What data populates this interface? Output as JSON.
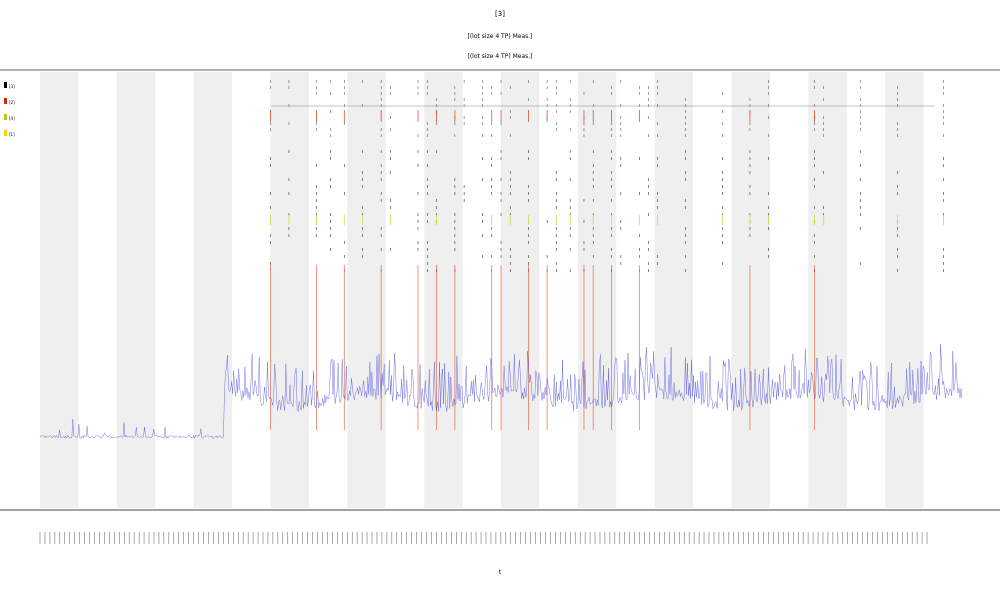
{
  "title_lines": [
    "[3]",
    "[(lot size 4 TP) Meas.]",
    "[(lot size 4 TP) Meas.]"
  ],
  "legend": {
    "entries": [
      {
        "label": "[3]",
        "color": "#000000"
      },
      {
        "label": "[2]",
        "color": "#d62a00"
      },
      {
        "label": "[4]",
        "color": "#c8c800"
      },
      {
        "label": "[1]",
        "color": "#ffd000"
      }
    ]
  },
  "x_axis_label": "t",
  "colors": {
    "band": "#efefef",
    "blue_trace": "#3b3bd8",
    "red_marker": "#e03a10",
    "yellow_marker": "#d8d830",
    "black_marker": "#111111",
    "axis": "#555555"
  },
  "chart_data": {
    "type": "line",
    "title": "",
    "xlabel": "t",
    "ylabel": "",
    "grid": false,
    "legend_position": "top-left",
    "n_bands": 24,
    "n_x_ticks": 180,
    "baseline_segment": {
      "start_fraction": 0.0,
      "end_fraction": 0.2,
      "level": 0.06
    },
    "active_segment": {
      "start_fraction": 0.2,
      "end_fraction": 1.0,
      "level": 0.16,
      "spread": 0.14
    },
    "event_markers": {
      "fractions": [
        0.25,
        0.27,
        0.3,
        0.315,
        0.33,
        0.35,
        0.37,
        0.38,
        0.41,
        0.42,
        0.43,
        0.45,
        0.46,
        0.48,
        0.49,
        0.5,
        0.51,
        0.53,
        0.55,
        0.56,
        0.575,
        0.59,
        0.6,
        0.62,
        0.63,
        0.65,
        0.66,
        0.67,
        0.7,
        0.74,
        0.77,
        0.79,
        0.84,
        0.85,
        0.89,
        0.93,
        0.98
      ],
      "colored_line_fractions": [
        0.25,
        0.3,
        0.33,
        0.37,
        0.41,
        0.43,
        0.45,
        0.49,
        0.5,
        0.53,
        0.55,
        0.59,
        0.6,
        0.62,
        0.65,
        0.77,
        0.84
      ]
    }
  }
}
